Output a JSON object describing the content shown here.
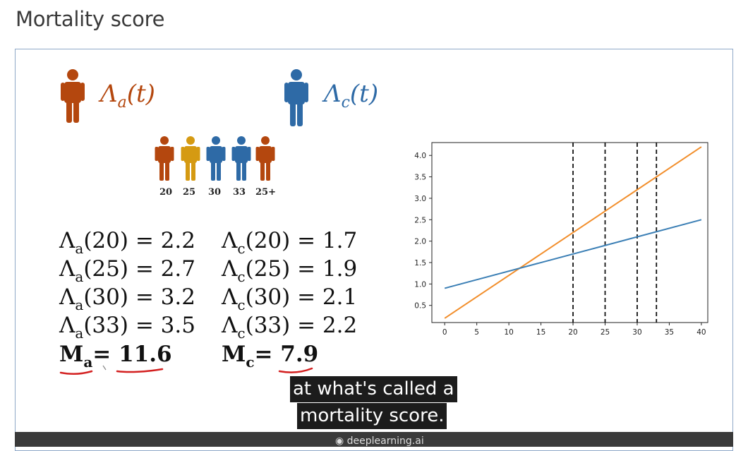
{
  "page": {
    "title": "Mortality score"
  },
  "slide": {
    "lambda_a": {
      "base": "Λ",
      "sub": "a",
      "arg": "(t)",
      "color": "#b4470e"
    },
    "lambda_c": {
      "base": "Λ",
      "sub": "c",
      "arg": "(t)",
      "color": "#2e6aa6"
    },
    "ages": [
      "20",
      "25",
      "30",
      "33",
      "25+"
    ],
    "person_colors": [
      "#b4470e",
      "#d59a12",
      "#2e6aa6",
      "#2e6aa6",
      "#b4470e"
    ],
    "equations_a": [
      {
        "lhs": "Λ",
        "sub": "a",
        "rhs": "(20) = 2.2"
      },
      {
        "lhs": "Λ",
        "sub": "a",
        "rhs": "(25) = 2.7"
      },
      {
        "lhs": "Λ",
        "sub": "a",
        "rhs": "(30) = 3.2"
      },
      {
        "lhs": "Λ",
        "sub": "a",
        "rhs": "(33) = 3.5"
      }
    ],
    "equations_c": [
      {
        "lhs": "Λ",
        "sub": "c",
        "rhs": "(20) = 1.7"
      },
      {
        "lhs": "Λ",
        "sub": "c",
        "rhs": "(25) = 1.9"
      },
      {
        "lhs": "Λ",
        "sub": "c",
        "rhs": "(30) = 2.1"
      },
      {
        "lhs": "Λ",
        "sub": "c",
        "rhs": "(33) = 2.2"
      }
    ],
    "score_a": {
      "label": "M",
      "sub": "a",
      "eq": "=",
      "value": "11.6"
    },
    "score_c": {
      "label": "M",
      "sub": "c",
      "eq": "=",
      "value": "7.9"
    }
  },
  "caption": {
    "line1": "at what's called a",
    "line2": "mortality score."
  },
  "footer": {
    "brand": "deeplearning.ai"
  },
  "chart_data": {
    "type": "line",
    "xlim": [
      -2,
      41
    ],
    "ylim": [
      0.1,
      4.3
    ],
    "xticks": [
      0,
      5,
      10,
      15,
      20,
      25,
      30,
      35,
      40
    ],
    "yticks": [
      0.5,
      1.0,
      1.5,
      2.0,
      2.5,
      3.0,
      3.5,
      4.0
    ],
    "vlines": [
      20,
      25,
      30,
      33
    ],
    "grid": false,
    "series": [
      {
        "x": [
          0,
          40
        ],
        "y": [
          0.2,
          4.2
        ],
        "color": "#f28e2b"
      },
      {
        "x": [
          0,
          40
        ],
        "y": [
          0.9,
          2.5
        ],
        "color": "#3b7fb5"
      }
    ]
  }
}
